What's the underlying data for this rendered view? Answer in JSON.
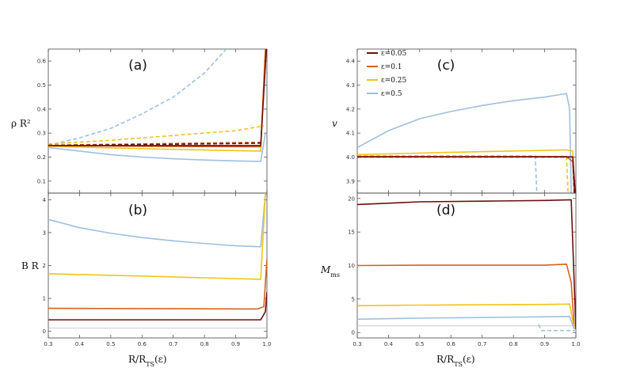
{
  "colors": {
    "eps005": "#6e0f0f",
    "eps01": "#d9621b",
    "eps025": "#f0c419",
    "eps05": "#9fbfe0",
    "axis": "#444444",
    "ref": "#bbbbbb"
  },
  "legend": {
    "position": "top-left of panel (c)",
    "entries": [
      {
        "label": "ε=0.05",
        "color": "#6e0f0f"
      },
      {
        "label": "ε=0.1",
        "color": "#d9621b"
      },
      {
        "label": "ε=0.25",
        "color": "#f0c419"
      },
      {
        "label": "ε=0.5",
        "color": "#9fbfe0"
      }
    ]
  },
  "xlabel_left": "R/R",
  "xlabel_left_sub": "TS",
  "xlabel_left_tail": "(ε)",
  "xlabel_right": "R/R",
  "xlabel_right_sub": "TS",
  "xlabel_right_tail": "(ε)",
  "chart_data": [
    {
      "panel": "(a)",
      "type": "line",
      "ylabel": "ρ R²",
      "xlim": [
        0.3,
        1.0
      ],
      "ylim": [
        0.05,
        0.65
      ],
      "yticks": [
        0.1,
        0.2,
        0.3,
        0.4,
        0.5,
        0.6
      ],
      "ytick_labels": [
        "0.1",
        "0.2",
        "0.3",
        "0.4",
        "0.5",
        "0.6"
      ],
      "xticks": [
        0.3,
        0.4,
        0.5,
        0.6,
        0.7,
        0.8,
        0.9,
        1.0
      ],
      "show_xtick_labels": false,
      "series": [
        {
          "color": "#9fbfe0",
          "dash": true,
          "x": [
            0.3,
            0.4,
            0.5,
            0.6,
            0.7,
            0.8,
            0.87
          ],
          "y": [
            0.25,
            0.28,
            0.32,
            0.38,
            0.45,
            0.55,
            0.65
          ]
        },
        {
          "color": "#f0c419",
          "dash": true,
          "x": [
            0.3,
            0.5,
            0.7,
            0.9,
            0.99
          ],
          "y": [
            0.255,
            0.27,
            0.29,
            0.31,
            0.33
          ]
        },
        {
          "color": "#d9621b",
          "dash": true,
          "x": [
            0.3,
            0.6,
            0.99
          ],
          "y": [
            0.25,
            0.255,
            0.262
          ]
        },
        {
          "color": "#6e0f0f",
          "dash": true,
          "x": [
            0.3,
            0.99
          ],
          "y": [
            0.248,
            0.258
          ]
        },
        {
          "color": "#9fbfe0",
          "dash": false,
          "x": [
            0.3,
            0.4,
            0.5,
            0.6,
            0.7,
            0.8,
            0.9,
            0.98,
            0.995
          ],
          "y": [
            0.24,
            0.225,
            0.21,
            0.2,
            0.193,
            0.188,
            0.184,
            0.182,
            0.3
          ]
        },
        {
          "color": "#f0c419",
          "dash": false,
          "x": [
            0.3,
            0.6,
            0.98,
            0.995
          ],
          "y": [
            0.245,
            0.235,
            0.225,
            0.65
          ]
        },
        {
          "color": "#d9621b",
          "dash": false,
          "x": [
            0.3,
            0.6,
            0.98,
            0.995
          ],
          "y": [
            0.248,
            0.245,
            0.243,
            0.65
          ]
        },
        {
          "color": "#6e0f0f",
          "dash": false,
          "x": [
            0.3,
            0.6,
            0.98,
            0.998
          ],
          "y": [
            0.248,
            0.248,
            0.248,
            0.65
          ]
        }
      ]
    },
    {
      "panel": "(b)",
      "type": "line",
      "ylabel": "B R",
      "xlim": [
        0.3,
        1.0
      ],
      "ylim": [
        -0.2,
        4.2
      ],
      "yticks": [
        0,
        1,
        2,
        3,
        4
      ],
      "ytick_labels": [
        "0",
        "1",
        "2",
        "3",
        "4"
      ],
      "xticks": [
        0.3,
        0.4,
        0.5,
        0.6,
        0.7,
        0.8,
        0.9,
        1.0
      ],
      "show_xtick_labels": true,
      "xtick_labels": [
        "0.3",
        "0.4",
        "0.5",
        "0.6",
        "0.7",
        "0.8",
        "0.9",
        "1.0"
      ],
      "reference_line": 0.1,
      "series": [
        {
          "color": "#9fbfe0",
          "dash": false,
          "x": [
            0.3,
            0.4,
            0.5,
            0.6,
            0.7,
            0.8,
            0.9,
            0.98,
            0.995
          ],
          "y": [
            3.4,
            3.15,
            2.98,
            2.85,
            2.75,
            2.67,
            2.6,
            2.57,
            4.2
          ]
        },
        {
          "color": "#f0c419",
          "dash": false,
          "x": [
            0.3,
            0.6,
            0.98,
            0.995
          ],
          "y": [
            1.75,
            1.68,
            1.58,
            4.2
          ]
        },
        {
          "color": "#d9621b",
          "dash": false,
          "x": [
            0.3,
            0.6,
            0.97,
            0.99,
            1.0
          ],
          "y": [
            0.7,
            0.69,
            0.68,
            0.75,
            2.2
          ]
        },
        {
          "color": "#6e0f0f",
          "dash": false,
          "x": [
            0.3,
            0.6,
            0.98,
            0.995,
            1.0
          ],
          "y": [
            0.35,
            0.35,
            0.35,
            0.6,
            1.2
          ]
        }
      ]
    },
    {
      "panel": "(c)",
      "type": "line",
      "ylabel": "v",
      "xlim": [
        0.3,
        1.0
      ],
      "ylim": [
        3.85,
        4.45
      ],
      "yticks": [
        3.9,
        4.0,
        4.1,
        4.2,
        4.3,
        4.4
      ],
      "ytick_labels": [
        "3.9",
        "4.0",
        "4.1",
        "4.2",
        "4.3",
        "4.4"
      ],
      "xticks": [
        0.3,
        0.4,
        0.5,
        0.6,
        0.7,
        0.8,
        0.9,
        1.0
      ],
      "show_xtick_labels": false,
      "reference_line": 4.0,
      "series": [
        {
          "color": "#9fbfe0",
          "dash": false,
          "x": [
            0.3,
            0.4,
            0.5,
            0.6,
            0.7,
            0.8,
            0.9,
            0.97,
            0.98,
            0.985
          ],
          "y": [
            4.04,
            4.11,
            4.16,
            4.19,
            4.215,
            4.235,
            4.25,
            4.265,
            4.2,
            3.85
          ]
        },
        {
          "color": "#9fbfe0",
          "dash": true,
          "x": [
            0.3,
            0.87,
            0.875
          ],
          "y": [
            4.005,
            4.005,
            3.85
          ]
        },
        {
          "color": "#f0c419",
          "dash": false,
          "x": [
            0.3,
            0.6,
            0.97,
            0.99,
            0.995
          ],
          "y": [
            4.01,
            4.02,
            4.03,
            4.025,
            3.85
          ]
        },
        {
          "color": "#f0c419",
          "dash": true,
          "x": [
            0.3,
            0.97,
            0.975
          ],
          "y": [
            4.003,
            4.003,
            3.85
          ]
        },
        {
          "color": "#d9621b",
          "dash": false,
          "x": [
            0.3,
            0.97,
            0.99,
            0.995
          ],
          "y": [
            4.002,
            4.002,
            3.98,
            3.85
          ]
        },
        {
          "color": "#6e0f0f",
          "dash": false,
          "x": [
            0.3,
            0.99,
            0.998
          ],
          "y": [
            4.001,
            4.001,
            3.85
          ]
        },
        {
          "color": "#6e0f0f",
          "dash": true,
          "x": [
            0.3,
            0.99,
            0.995
          ],
          "y": [
            4.0,
            4.0,
            3.85
          ]
        }
      ]
    },
    {
      "panel": "(d)",
      "type": "line",
      "ylabel": "M",
      "ylabel_sub": "ms",
      "xlim": [
        0.3,
        1.0
      ],
      "ylim": [
        -0.8,
        20.8
      ],
      "yticks": [
        0,
        5,
        10,
        15,
        20
      ],
      "ytick_labels": [
        "0",
        "5",
        "10",
        "15",
        "20"
      ],
      "xticks": [
        0.3,
        0.4,
        0.5,
        0.6,
        0.7,
        0.8,
        0.9,
        1.0
      ],
      "show_xtick_labels": true,
      "xtick_labels": [
        "0.3",
        "0.4",
        "0.5",
        "0.6",
        "0.7",
        "0.8",
        "0.9",
        "1.0"
      ],
      "reference_line": 1.0,
      "series": [
        {
          "color": "#6e0f0f",
          "dash": false,
          "x": [
            0.3,
            0.5,
            0.7,
            0.9,
            0.985,
            1.0
          ],
          "y": [
            19.1,
            19.5,
            19.6,
            19.7,
            19.8,
            0.5
          ]
        },
        {
          "color": "#d9621b",
          "dash": false,
          "x": [
            0.3,
            0.5,
            0.7,
            0.9,
            0.97,
            0.985,
            0.995
          ],
          "y": [
            10.0,
            10.05,
            10.05,
            10.05,
            10.2,
            7.5,
            0.5
          ]
        },
        {
          "color": "#f0c419",
          "dash": false,
          "x": [
            0.3,
            0.5,
            0.7,
            0.9,
            0.98,
            0.995
          ],
          "y": [
            4.0,
            4.1,
            4.15,
            4.2,
            4.25,
            0.5
          ]
        },
        {
          "color": "#9fbfe0",
          "dash": false,
          "x": [
            0.3,
            0.5,
            0.7,
            0.9,
            0.98,
            0.995
          ],
          "y": [
            2.0,
            2.15,
            2.25,
            2.35,
            2.4,
            0.5
          ]
        },
        {
          "color": "#9fbfe0",
          "dash": true,
          "x": [
            0.88,
            0.89,
            1.0
          ],
          "y": [
            1.2,
            0.3,
            0.3
          ]
        }
      ]
    }
  ]
}
